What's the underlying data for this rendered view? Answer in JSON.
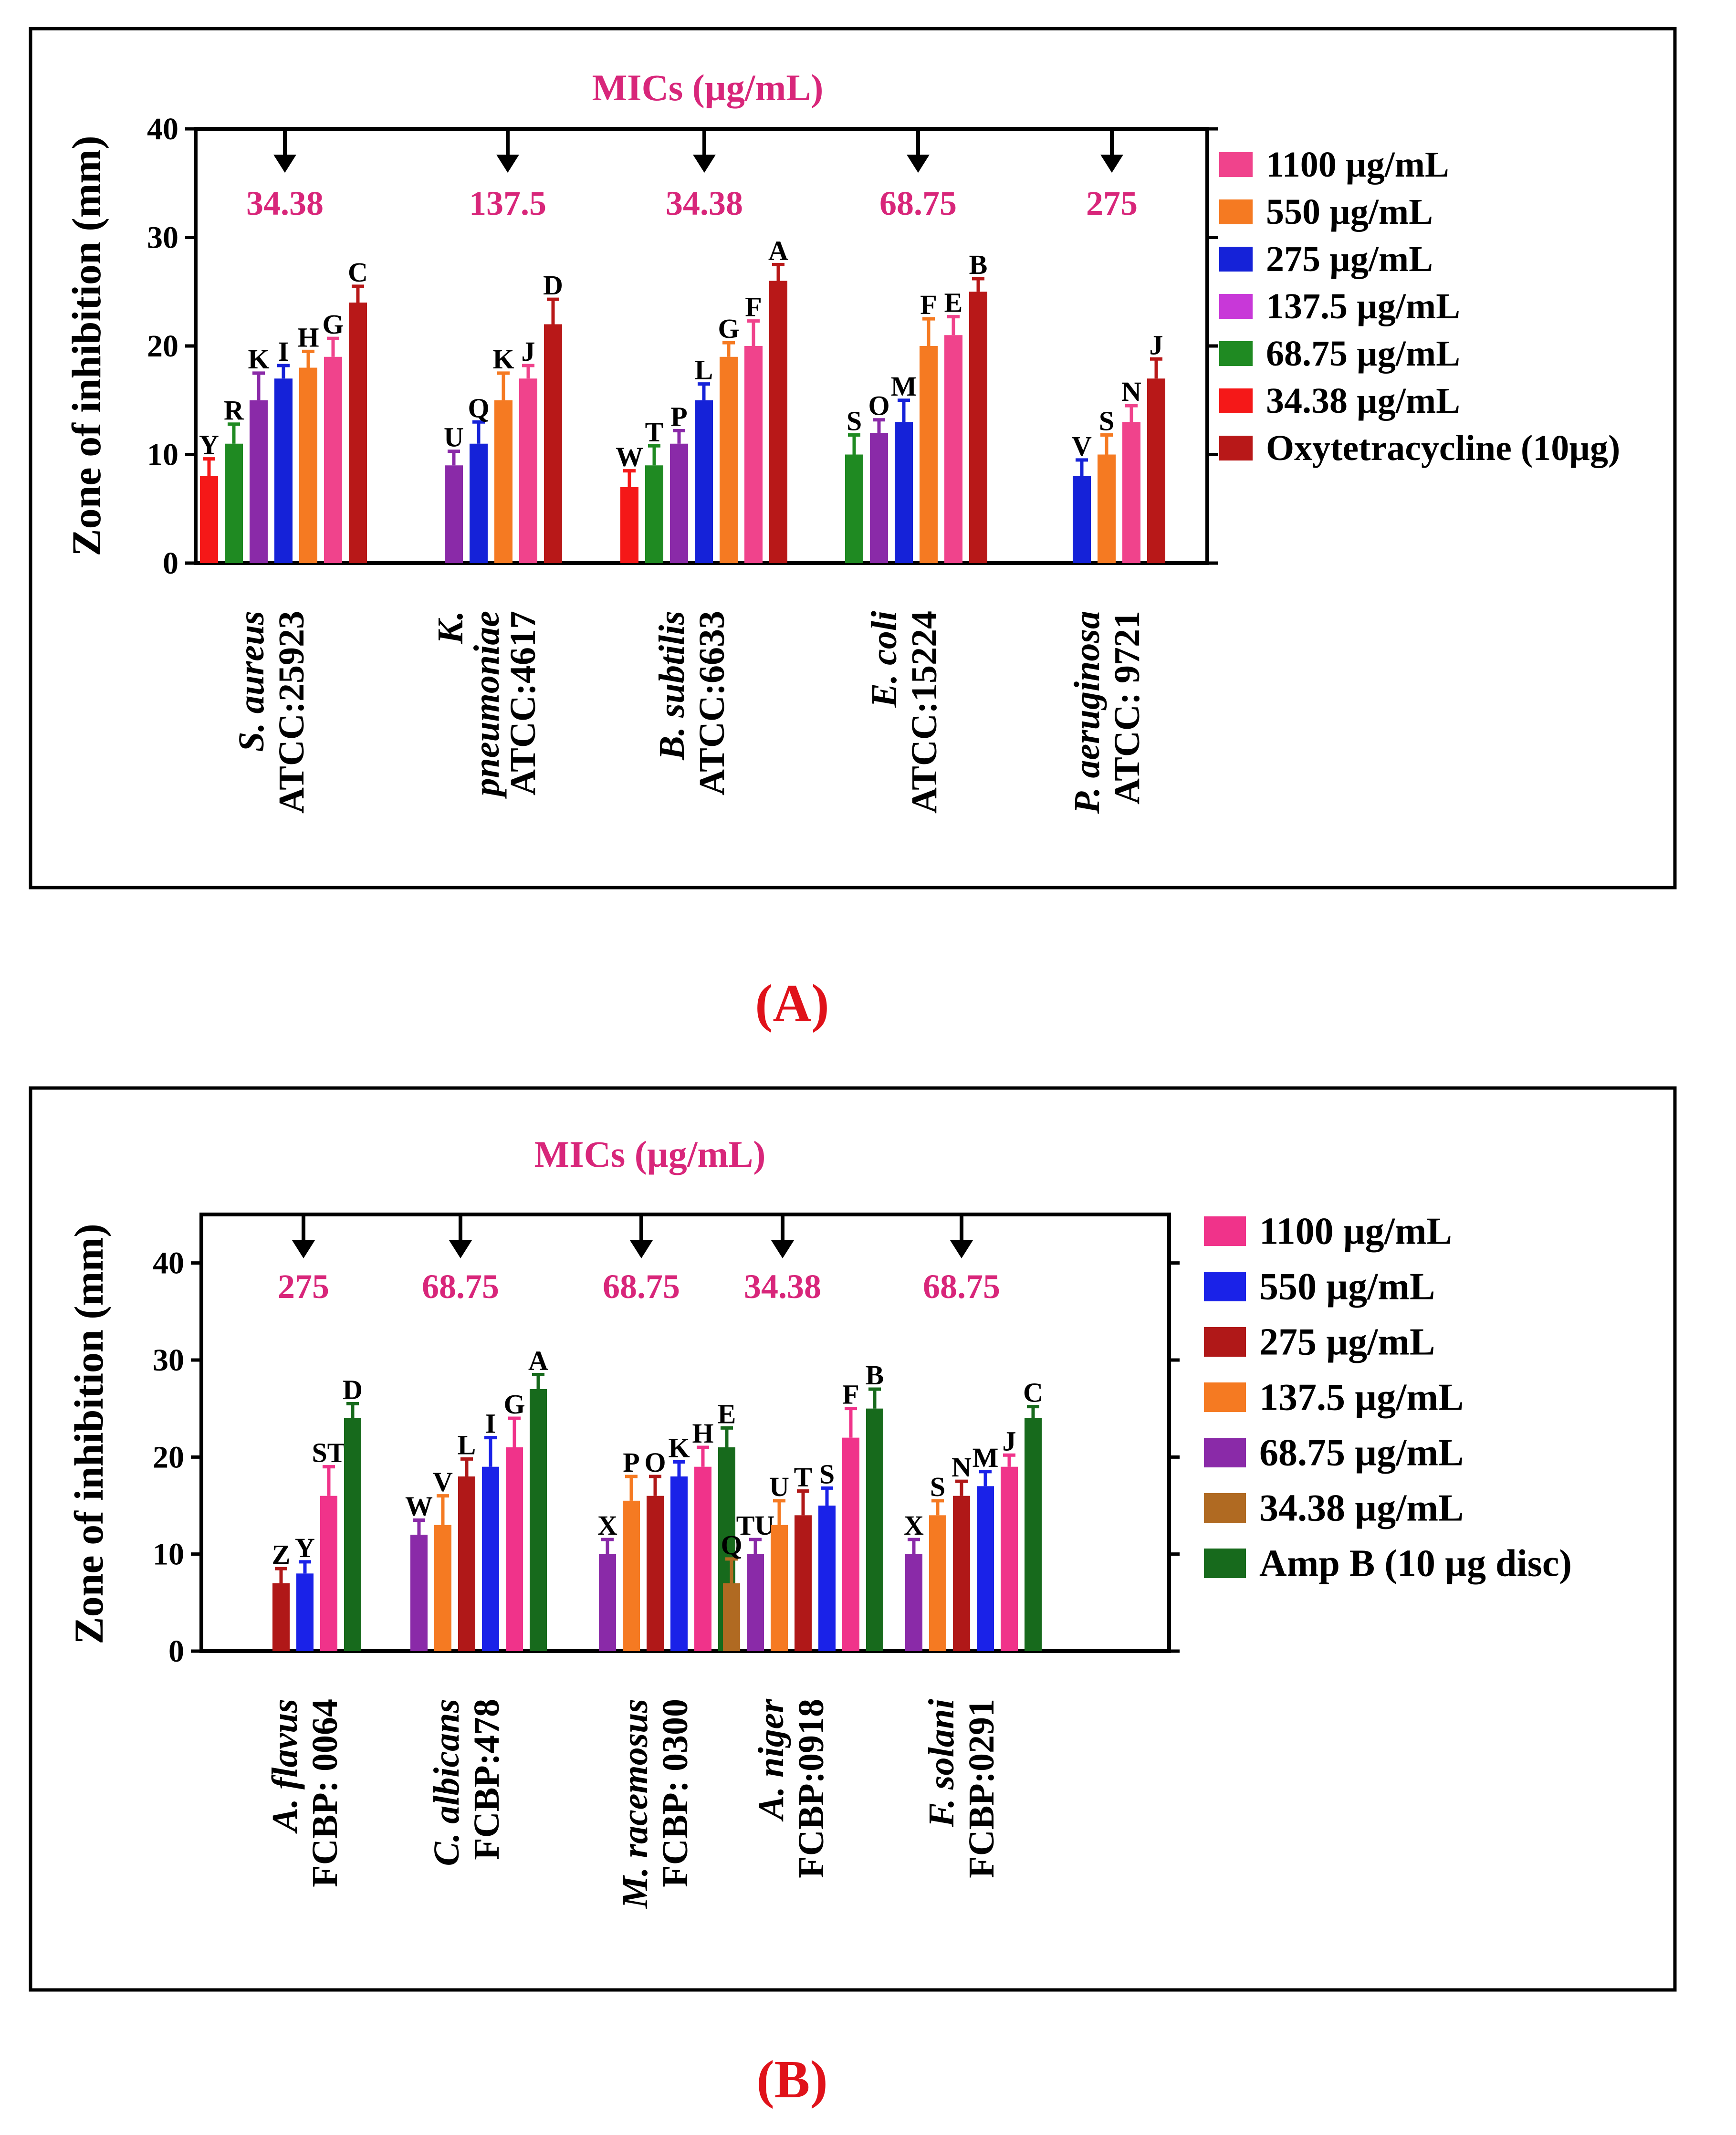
{
  "charts": [
    {
      "panel_label": "(A)",
      "mic_title": "MICs (µg/mL)",
      "mic_values": [
        "34.38",
        "137.5",
        "34.38",
        "68.75",
        "275"
      ],
      "ylabel": "Zone of inhibition (mm)",
      "yticks": [
        "0",
        "10",
        "20",
        "30",
        "40"
      ],
      "legend": [
        {
          "label": "1100 µg/mL",
          "color": "#f0438c"
        },
        {
          "label": "550 µg/mL",
          "color": "#f57a22"
        },
        {
          "label": "275 µg/mL",
          "color": "#1522d8"
        },
        {
          "label": "137.5 µg/mL",
          "color": "#c838d8"
        },
        {
          "label": "68.75 µg/mL",
          "color": "#1f8a22"
        },
        {
          "label": "34.38 µg/mL",
          "color": "#f51818"
        },
        {
          "label": "Oxytetracycline (10µg)",
          "color": "#b81818"
        }
      ],
      "groups": [
        {
          "line1": "S. aureus",
          "line2": "ATCC:25923",
          "bars": [
            {
              "value": 8,
              "err": 1.6,
              "letter": "Y",
              "color": "#f51818"
            },
            {
              "value": 11,
              "err": 1.8,
              "letter": "R",
              "color": "#1f8a22"
            },
            {
              "value": 15,
              "err": 2.5,
              "letter": "K",
              "color": "#8a2aa8"
            },
            {
              "value": 17,
              "err": 1.2,
              "letter": "I",
              "color": "#1522d8"
            },
            {
              "value": 18,
              "err": 1.5,
              "letter": "H",
              "color": "#f57a22"
            },
            {
              "value": 19,
              "err": 1.7,
              "letter": "G",
              "color": "#f0438c"
            },
            {
              "value": 24,
              "err": 1.5,
              "letter": "C",
              "color": "#b81818"
            }
          ]
        },
        {
          "line1": "K.",
          "line2": "pneumoniae",
          "line3": "ATCC:4617",
          "bars": [
            {
              "value": 9,
              "err": 1.3,
              "letter": "U",
              "color": "#8a2aa8"
            },
            {
              "value": 11,
              "err": 2.0,
              "letter": "Q",
              "color": "#1522d8"
            },
            {
              "value": 15,
              "err": 2.5,
              "letter": "K",
              "color": "#f57a22"
            },
            {
              "value": 17,
              "err": 1.2,
              "letter": "J",
              "color": "#f0438c"
            },
            {
              "value": 22,
              "err": 2.3,
              "letter": "D",
              "color": "#b81818"
            }
          ]
        },
        {
          "line1": "B. subtilis",
          "line2": "ATCC:6633",
          "bars": [
            {
              "value": 7,
              "err": 1.5,
              "letter": "W",
              "color": "#f51818"
            },
            {
              "value": 9,
              "err": 1.8,
              "letter": "T",
              "color": "#1f8a22"
            },
            {
              "value": 11,
              "err": 1.2,
              "letter": "P",
              "color": "#8a2aa8"
            },
            {
              "value": 15,
              "err": 1.5,
              "letter": "L",
              "color": "#1522d8"
            },
            {
              "value": 19,
              "err": 1.3,
              "letter": "G",
              "color": "#f57a22"
            },
            {
              "value": 20,
              "err": 2.3,
              "letter": "F",
              "color": "#f0438c"
            },
            {
              "value": 26,
              "err": 1.5,
              "letter": "A",
              "color": "#b81818"
            }
          ]
        },
        {
          "line1": "E. coli",
          "line2": "ATCC:15224",
          "bars": [
            {
              "value": 10,
              "err": 1.8,
              "letter": "S",
              "color": "#1f8a22"
            },
            {
              "value": 12,
              "err": 1.2,
              "letter": "O",
              "color": "#8a2aa8"
            },
            {
              "value": 13,
              "err": 2.0,
              "letter": "M",
              "color": "#1522d8"
            },
            {
              "value": 20,
              "err": 2.5,
              "letter": "F",
              "color": "#f57a22"
            },
            {
              "value": 21,
              "err": 1.7,
              "letter": "E",
              "color": "#f0438c"
            },
            {
              "value": 25,
              "err": 1.2,
              "letter": "B",
              "color": "#b81818"
            }
          ]
        },
        {
          "line1": "P. aeruginosa",
          "line2": "ATCC: 9721",
          "bars": [
            {
              "value": 8,
              "err": 1.5,
              "letter": "V",
              "color": "#1522d8"
            },
            {
              "value": 10,
              "err": 1.8,
              "letter": "S",
              "color": "#f57a22"
            },
            {
              "value": 13,
              "err": 1.5,
              "letter": "N",
              "color": "#f0438c"
            },
            {
              "value": 17,
              "err": 1.8,
              "letter": "J",
              "color": "#b81818"
            }
          ]
        }
      ]
    },
    {
      "panel_label": "(B)",
      "mic_title": "MICs (µg/mL)",
      "mic_values": [
        "275",
        "68.75",
        "68.75",
        "34.38",
        "68.75"
      ],
      "ylabel": "Zone of inhibition (mm)",
      "yticks": [
        "0",
        "10",
        "20",
        "30",
        "40"
      ],
      "legend": [
        {
          "label": "1100 µg/mL",
          "color": "#f0338a"
        },
        {
          "label": "550 µg/mL",
          "color": "#1a22e8"
        },
        {
          "label": "275 µg/mL",
          "color": "#b01818"
        },
        {
          "label": "137.5 µg/mL",
          "color": "#f57a22"
        },
        {
          "label": "68.75 µg/mL",
          "color": "#8a2aa8"
        },
        {
          "label": "34.38 µg/mL",
          "color": "#b06a22"
        },
        {
          "label": "Amp B (10 µg disc)",
          "color": "#176a1c"
        }
      ],
      "groups": [
        {
          "line1": "A. flavus",
          "line2": "FCBP: 0064",
          "bars": [
            {
              "value": 7,
              "err": 1.5,
              "letter": "Z",
              "color": "#b01818"
            },
            {
              "value": 8,
              "err": 1.2,
              "letter": "Y",
              "color": "#1a22e8"
            },
            {
              "value": 16,
              "err": 3.0,
              "letter": "ST",
              "color": "#f0338a"
            },
            {
              "value": 24,
              "err": 1.5,
              "letter": "D",
              "color": "#176a1c"
            }
          ]
        },
        {
          "line1": "C. albicans",
          "line2": "FCBP:478",
          "bars": [
            {
              "value": 12,
              "err": 1.5,
              "letter": "W",
              "color": "#8a2aa8"
            },
            {
              "value": 13,
              "err": 3.0,
              "letter": "V",
              "color": "#f57a22"
            },
            {
              "value": 18,
              "err": 1.8,
              "letter": "L",
              "color": "#b01818"
            },
            {
              "value": 19,
              "err": 3.0,
              "letter": "I",
              "color": "#1a22e8"
            },
            {
              "value": 21,
              "err": 3.0,
              "letter": "G",
              "color": "#f0338a"
            },
            {
              "value": 27,
              "err": 1.5,
              "letter": "A",
              "color": "#176a1c"
            }
          ]
        },
        {
          "line1": "M. racemosus",
          "line2": "FCBP: 0300",
          "bars": [
            {
              "value": 10,
              "err": 1.5,
              "letter": "X",
              "color": "#8a2aa8"
            },
            {
              "value": 15.5,
              "err": 2.5,
              "letter": "P",
              "color": "#f57a22"
            },
            {
              "value": 16,
              "err": 2.0,
              "letter": "O",
              "color": "#b01818"
            },
            {
              "value": 18,
              "err": 1.5,
              "letter": "K",
              "color": "#1a22e8"
            },
            {
              "value": 19,
              "err": 2.0,
              "letter": "H",
              "color": "#f0338a"
            },
            {
              "value": 21,
              "err": 2.0,
              "letter": "E",
              "color": "#176a1c"
            }
          ]
        },
        {
          "line1": "A. niger",
          "line2": "FCBP:0918",
          "bars": [
            {
              "value": 7,
              "err": 2.5,
              "letter": "Q",
              "color": "#b06a22"
            },
            {
              "value": 10,
              "err": 1.5,
              "letter": "TU",
              "color": "#8a2aa8"
            },
            {
              "value": 13,
              "err": 2.5,
              "letter": "U",
              "color": "#f57a22"
            },
            {
              "value": 14,
              "err": 2.5,
              "letter": "T",
              "color": "#b01818"
            },
            {
              "value": 15,
              "err": 1.8,
              "letter": "S",
              "color": "#1a22e8"
            },
            {
              "value": 22,
              "err": 3.0,
              "letter": "F",
              "color": "#f0338a"
            },
            {
              "value": 25,
              "err": 2.0,
              "letter": "B",
              "color": "#176a1c"
            }
          ]
        },
        {
          "line1": "F. solani",
          "line2": "FCBP:0291",
          "bars": [
            {
              "value": 10,
              "err": 1.5,
              "letter": "X",
              "color": "#8a2aa8"
            },
            {
              "value": 14,
              "err": 1.5,
              "letter": "S",
              "color": "#f57a22"
            },
            {
              "value": 16,
              "err": 1.5,
              "letter": "N",
              "color": "#b01818"
            },
            {
              "value": 17,
              "err": 1.5,
              "letter": "M",
              "color": "#1a22e8"
            },
            {
              "value": 19,
              "err": 1.2,
              "letter": "J",
              "color": "#f0338a"
            },
            {
              "value": 24,
              "err": 1.2,
              "letter": "C",
              "color": "#176a1c"
            }
          ]
        }
      ]
    }
  ],
  "chart_data": [
    {
      "type": "bar",
      "title": "MICs (µg/mL)",
      "ylabel": "Zone of inhibition (mm)",
      "ylim": [
        0,
        40
      ],
      "categories": [
        "S. aureus ATCC:25923",
        "K. pneumoniae ATCC:4617",
        "B. subtilis ATCC:6633",
        "E. coli ATCC:15224",
        "P. aeruginosa ATCC: 9721"
      ],
      "series": [
        {
          "name": "1100 µg/mL",
          "values": [
            19,
            17,
            20,
            21,
            13
          ]
        },
        {
          "name": "550 µg/mL",
          "values": [
            18,
            15,
            19,
            20,
            10
          ]
        },
        {
          "name": "275 µg/mL",
          "values": [
            17,
            11,
            15,
            13,
            8
          ]
        },
        {
          "name": "137.5 µg/mL",
          "values": [
            15,
            9,
            11,
            12,
            null
          ]
        },
        {
          "name": "68.75 µg/mL",
          "values": [
            11,
            null,
            9,
            10,
            null
          ]
        },
        {
          "name": "34.38 µg/mL",
          "values": [
            8,
            null,
            7,
            null,
            null
          ]
        },
        {
          "name": "Oxytetracycline (10µg)",
          "values": [
            24,
            22,
            26,
            25,
            17
          ]
        }
      ]
    },
    {
      "type": "bar",
      "title": "MICs (µg/mL)",
      "ylabel": "Zone of inhibition (mm)",
      "ylim": [
        0,
        45
      ],
      "categories": [
        "A. flavus FCBP: 0064",
        "C. albicans FCBP:478",
        "M. racemosus FCBP: 0300",
        "A. niger FCBP:0918",
        "F. solani FCBP:0291"
      ],
      "series": [
        {
          "name": "1100 µg/mL",
          "values": [
            16,
            21,
            19,
            22,
            19
          ]
        },
        {
          "name": "550 µg/mL",
          "values": [
            8,
            19,
            18,
            15,
            17
          ]
        },
        {
          "name": "275 µg/mL",
          "values": [
            7,
            18,
            16,
            14,
            16
          ]
        },
        {
          "name": "137.5 µg/mL",
          "values": [
            null,
            13,
            15.5,
            13,
            14
          ]
        },
        {
          "name": "68.75 µg/mL",
          "values": [
            null,
            12,
            10,
            10,
            10
          ]
        },
        {
          "name": "34.38 µg/mL",
          "values": [
            null,
            null,
            null,
            7,
            null
          ]
        },
        {
          "name": "Amp B (10 µg disc)",
          "values": [
            24,
            27,
            21,
            25,
            24
          ]
        }
      ]
    }
  ]
}
